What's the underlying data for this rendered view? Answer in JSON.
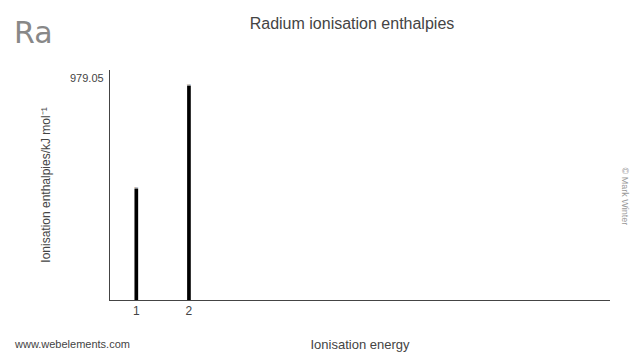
{
  "chart_data": {
    "type": "bar",
    "title": "Radium ionisation enthalpies",
    "xlabel": "Ionisation energy",
    "ylabel": "Ionisation enthalpies/kJ mol⁻¹",
    "x": [
      1,
      2
    ],
    "values": [
      509,
      979
    ],
    "color": "#000000",
    "xlim": [
      0.5,
      10
    ],
    "xticks": [
      1,
      2
    ],
    "ylim": [
      0,
      1050
    ],
    "yticks": [],
    "tick_labels": "x",
    "data_labels": true,
    "grid": false,
    "annotations": [
      {
        "text": "979.05",
        "y": 979.05
      },
      {
        "text": "Ra"
      },
      {
        "text": "© Mark Winter"
      },
      {
        "text": "www.webelements.com"
      }
    ]
  }
}
